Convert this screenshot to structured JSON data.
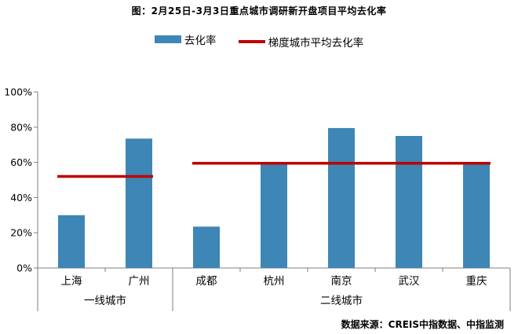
{
  "chart_data": {
    "type": "bar",
    "title": "图：2月25日-3月3日重点城市调研新开盘项目平均去化率",
    "categories": [
      "上海",
      "广州",
      "成都",
      "杭州",
      "南京",
      "武汉",
      "重庆"
    ],
    "series": [
      {
        "name": "去化率",
        "values": [
          30,
          73.5,
          23.5,
          59,
          79.5,
          75,
          59.5
        ],
        "color": "#3d86b5"
      }
    ],
    "average_lines": [
      {
        "name": "梯度城市平均去化率",
        "value": 52,
        "from_category": 0,
        "to_category": 1,
        "color": "#c00000"
      },
      {
        "name": "梯度城市平均去化率",
        "value": 59.5,
        "from_category": 2,
        "to_category": 6,
        "color": "#c00000"
      }
    ],
    "groups": [
      {
        "label": "一线城市",
        "start": 0,
        "end": 1
      },
      {
        "label": "二线城市",
        "start": 2,
        "end": 6
      }
    ],
    "ylim": [
      0,
      100
    ],
    "yticks": [
      "0%",
      "20%",
      "40%",
      "60%",
      "80%",
      "100%"
    ],
    "ytick_values": [
      0,
      20,
      40,
      60,
      80,
      100
    ],
    "xlabel": "",
    "ylabel": "",
    "grid": false,
    "legend_position": "top"
  },
  "legend": {
    "bar_label": "去化率",
    "line_label": "梯度城市平均去化率",
    "bar_color": "#3d86b5",
    "line_color": "#c00000"
  },
  "source": "数据来源：CREIS中指数据、中指监测"
}
